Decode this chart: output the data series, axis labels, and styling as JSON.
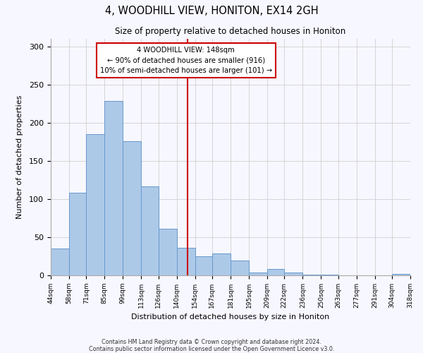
{
  "title": "4, WOODHILL VIEW, HONITON, EX14 2GH",
  "subtitle": "Size of property relative to detached houses in Honiton",
  "xlabel": "Distribution of detached houses by size in Honiton",
  "ylabel": "Number of detached properties",
  "bar_color": "#adc9e8",
  "bar_edge_color": "#6699cc",
  "bins": [
    44,
    58,
    71,
    85,
    99,
    113,
    126,
    140,
    154,
    167,
    181,
    195,
    209,
    222,
    236,
    250,
    263,
    277,
    291,
    304,
    318
  ],
  "counts": [
    35,
    108,
    185,
    229,
    176,
    117,
    61,
    36,
    25,
    29,
    19,
    4,
    8,
    4,
    1,
    1,
    0,
    0,
    0,
    2
  ],
  "tick_labels": [
    "44sqm",
    "58sqm",
    "71sqm",
    "85sqm",
    "99sqm",
    "113sqm",
    "126sqm",
    "140sqm",
    "154sqm",
    "167sqm",
    "181sqm",
    "195sqm",
    "209sqm",
    "222sqm",
    "236sqm",
    "250sqm",
    "263sqm",
    "277sqm",
    "291sqm",
    "304sqm",
    "318sqm"
  ],
  "vline_x": 148,
  "vline_color": "#cc0000",
  "annotation_line1": "4 WOODHILL VIEW: 148sqm",
  "annotation_line2": "← 90% of detached houses are smaller (916)",
  "annotation_line3": "10% of semi-detached houses are larger (101) →",
  "annotation_box_color": "#cc0000",
  "ylim": [
    0,
    310
  ],
  "yticks": [
    0,
    50,
    100,
    150,
    200,
    250,
    300
  ],
  "footer_line1": "Contains HM Land Registry data © Crown copyright and database right 2024.",
  "footer_line2": "Contains public sector information licensed under the Open Government Licence v3.0.",
  "background_color": "#f7f7ff",
  "grid_color": "#d0d0d0"
}
